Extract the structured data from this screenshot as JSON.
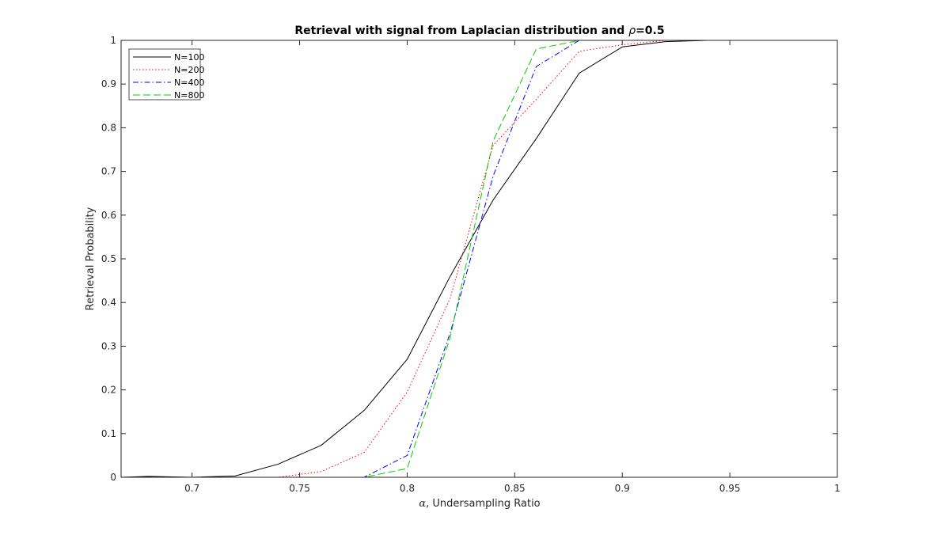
{
  "chart_data": {
    "type": "line",
    "title": {
      "prefix": "Retrieval with signal from Laplacian distribution and ",
      "symbol": "ρ",
      "suffix": "=0.5"
    },
    "xlabel": {
      "symbol": "α",
      "text": ", Undersampling Ratio"
    },
    "ylabel": "Retrieval Probability",
    "xlim": [
      0.667,
      1.0
    ],
    "ylim": [
      0,
      1
    ],
    "xticks": [
      0.7,
      0.75,
      0.8,
      0.85,
      0.9,
      0.95,
      1
    ],
    "xtick_labels": [
      "0.7",
      "0.75",
      "0.8",
      "0.85",
      "0.9",
      "0.95",
      "1"
    ],
    "yticks": [
      0,
      0.1,
      0.2,
      0.3,
      0.4,
      0.5,
      0.6,
      0.7,
      0.8,
      0.9,
      1
    ],
    "ytick_labels": [
      "0",
      "0.1",
      "0.2",
      "0.3",
      "0.4",
      "0.5",
      "0.6",
      "0.7",
      "0.8",
      "0.9",
      "1"
    ],
    "grid": false,
    "legend_position": "top-left",
    "x": [
      0.667,
      0.68,
      0.7,
      0.72,
      0.74,
      0.76,
      0.78,
      0.8,
      0.82,
      0.84,
      0.86,
      0.88,
      0.9,
      0.92,
      0.94,
      0.96,
      0.98
    ],
    "series": [
      {
        "name": "N=100",
        "color": "#000000",
        "dash": "solid",
        "values": [
          0.0,
          0.002,
          0.0,
          0.003,
          0.03,
          0.073,
          0.153,
          0.27,
          0.46,
          0.635,
          0.775,
          0.925,
          0.985,
          0.997,
          1.0,
          1.0,
          1.0
        ]
      },
      {
        "name": "N=200",
        "color": "#ff0000",
        "dash": "dotted",
        "values": [
          0.0,
          0.0,
          0.0,
          0.0,
          0.0,
          0.013,
          0.057,
          0.195,
          0.41,
          0.76,
          0.865,
          0.975,
          0.99,
          1.0,
          1.0,
          1.0,
          1.0
        ]
      },
      {
        "name": "N=400",
        "color": "#0000ff",
        "dash": "dashdot",
        "values": [
          0.0,
          0.0,
          0.0,
          0.0,
          0.0,
          0.0,
          0.0,
          0.05,
          0.33,
          0.69,
          0.94,
          1.0,
          1.0,
          1.0,
          1.0,
          1.0,
          1.0
        ]
      },
      {
        "name": "N=800",
        "color": "#00cc00",
        "dash": "dashed",
        "values": [
          0.0,
          0.0,
          0.0,
          0.0,
          0.0,
          0.0,
          0.0,
          0.02,
          0.32,
          0.77,
          0.98,
          1.0,
          1.0,
          1.0,
          1.0,
          1.0,
          1.0
        ]
      }
    ]
  }
}
